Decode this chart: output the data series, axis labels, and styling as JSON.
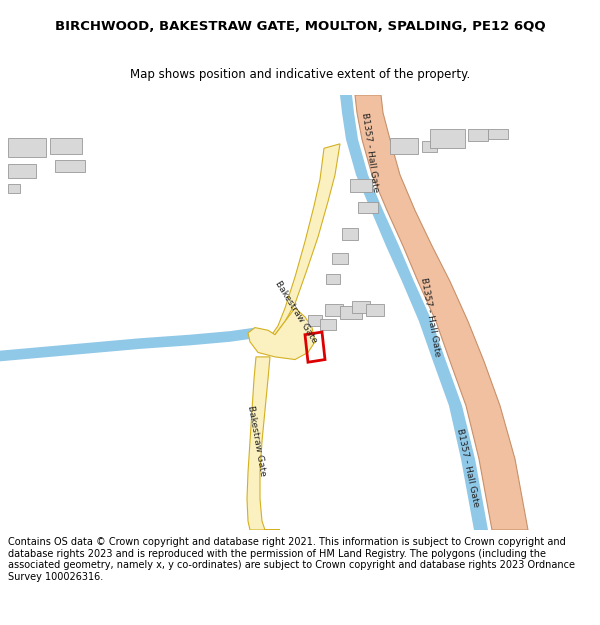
{
  "title": "BIRCHWOOD, BAKESTRAW GATE, MOULTON, SPALDING, PE12 6QQ",
  "subtitle": "Map shows position and indicative extent of the property.",
  "footer": "Contains OS data © Crown copyright and database right 2021. This information is subject to Crown copyright and database rights 2023 and is reproduced with the permission of HM Land Registry. The polygons (including the associated geometry, namely x, y co-ordinates) are subject to Crown copyright and database rights 2023 Ordnance Survey 100026316.",
  "map_bg": "#ffffff",
  "road_b1357_color": "#f0c0a0",
  "road_b1357_edge": "#c8906a",
  "road_local_color": "#faf0c0",
  "road_local_edge": "#d4b020",
  "river_color": "#90c8e8",
  "building_color": "#d8d8d8",
  "building_edge": "#999999",
  "plot_edge": "#dd0000",
  "label_color": "#222222",
  "title_fontsize": 9.5,
  "subtitle_fontsize": 8.5,
  "footer_fontsize": 7.0,
  "map_label_fontsize": 6.5
}
